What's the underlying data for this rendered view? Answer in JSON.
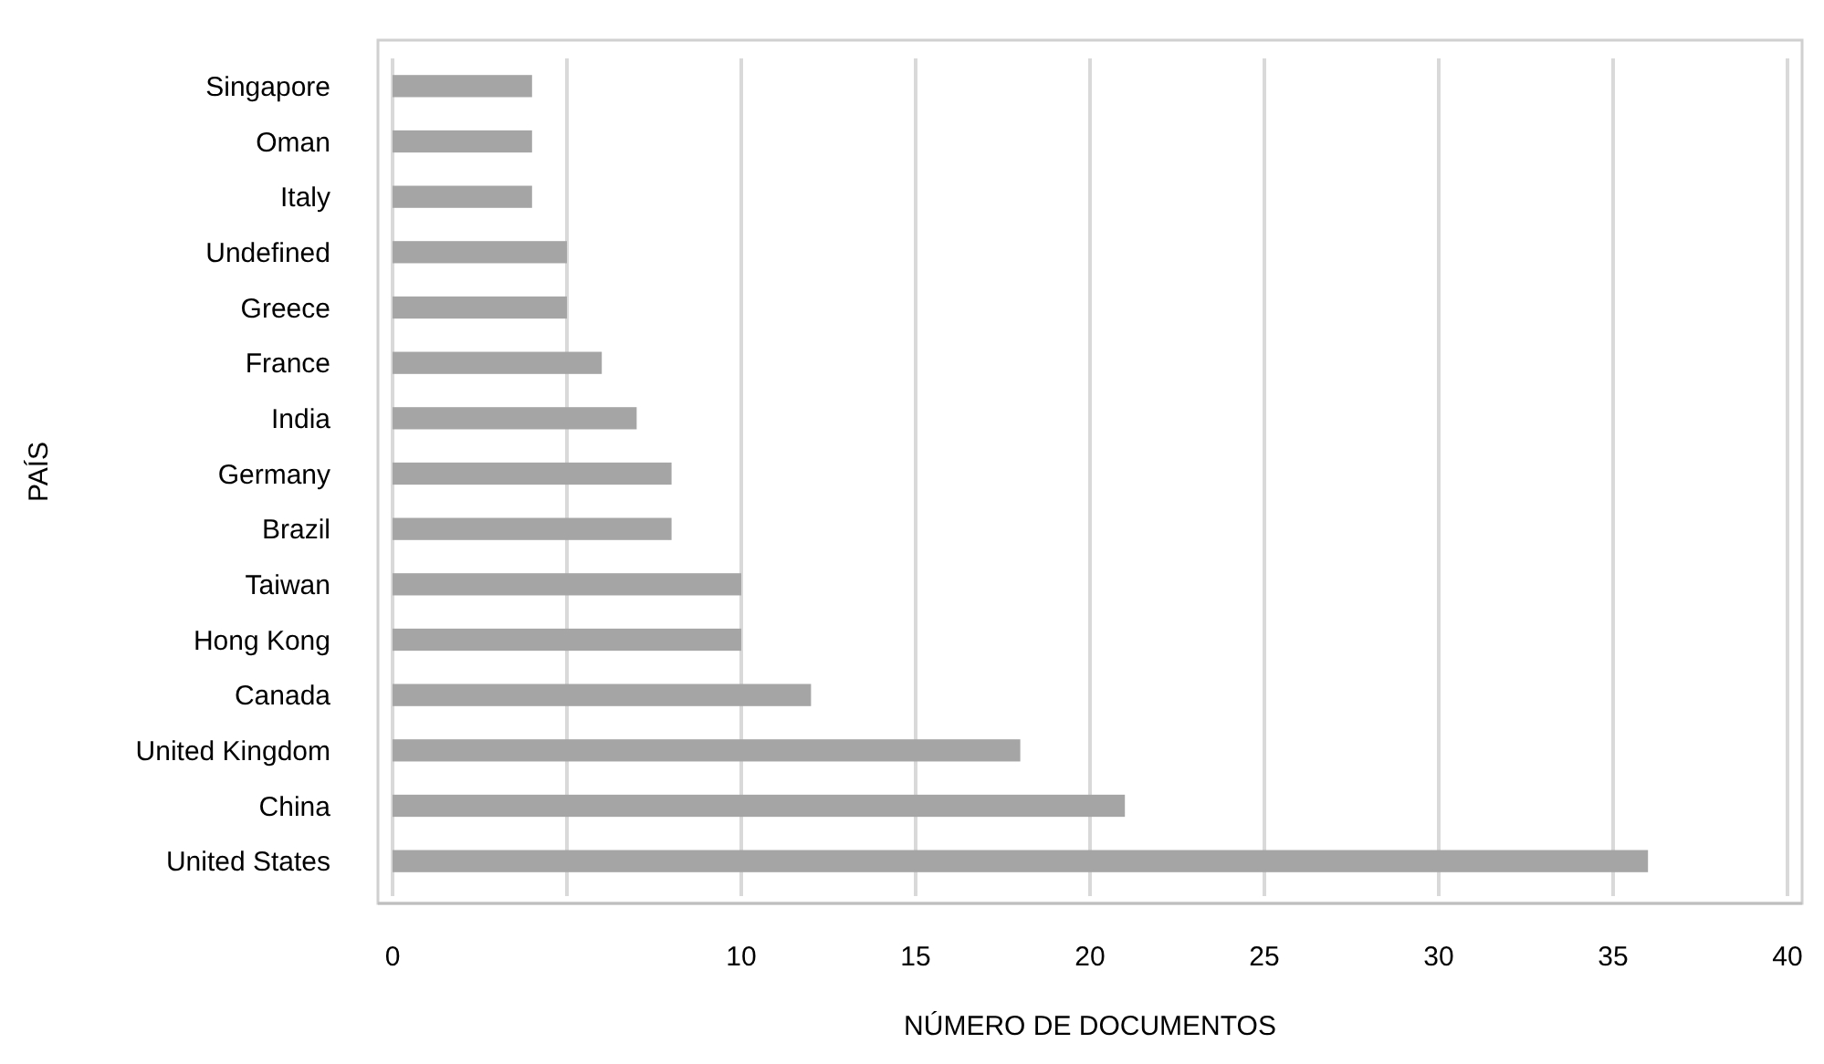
{
  "chart_data": {
    "type": "bar",
    "orientation": "horizontal",
    "xlabel": "NÚMERO DE DOCUMENTOS",
    "ylabel": "PAÍS",
    "categories": [
      "Singapore",
      "Oman",
      "Italy",
      "Undefined",
      "Greece",
      "France",
      "India",
      "Germany",
      "Brazil",
      "Taiwan",
      "Hong Kong",
      "Canada",
      "United Kingdom",
      "China",
      "United States"
    ],
    "values": [
      4,
      4,
      4,
      5,
      5,
      6,
      7,
      8,
      8,
      10,
      10,
      12,
      18,
      21,
      36
    ],
    "color": "#a5a5a5",
    "xlim": [
      0,
      40
    ],
    "xticks": [
      0,
      {
        "value": 5,
        "label": null
      },
      10,
      15,
      20,
      25,
      30,
      35,
      40
    ],
    "grid": "x"
  }
}
